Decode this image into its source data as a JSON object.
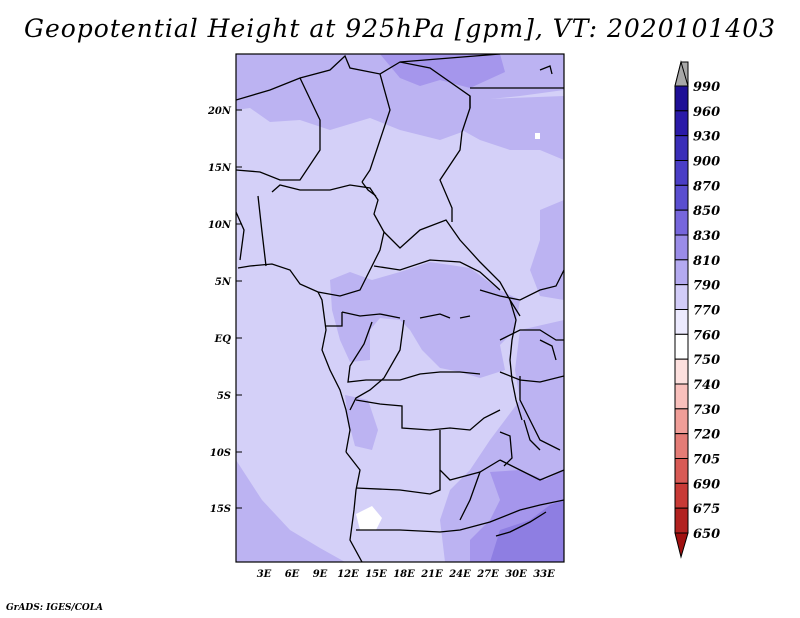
{
  "title": "Geopotential Height at 925hPa [gpm], VT: 2020101403",
  "credit": "GrADS: IGES/COLA",
  "map": {
    "lat_labels": [
      "20N",
      "15N",
      "10N",
      "5N",
      "EQ",
      "5S",
      "10S",
      "15S"
    ],
    "lon_labels": [
      "3E",
      "6E",
      "9E",
      "12E",
      "15E",
      "18E",
      "21E",
      "24E",
      "27E",
      "30E",
      "33E"
    ],
    "lon_range": [
      0,
      35
    ],
    "lat_range": [
      -20,
      24
    ]
  },
  "colorbar": {
    "levels": [
      "990",
      "960",
      "930",
      "900",
      "870",
      "850",
      "830",
      "810",
      "790",
      "770",
      "760",
      "750",
      "740",
      "730",
      "720",
      "705",
      "690",
      "675",
      "650"
    ],
    "colors": [
      "#a8a8a8",
      "#1e0f96",
      "#2a1aa8",
      "#3a2eb8",
      "#4a3ec6",
      "#5a4ed0",
      "#7666dc",
      "#9a8ce8",
      "#b4aaf0",
      "#d2ccf8",
      "#eceafe",
      "#ffffff",
      "#fde0de",
      "#f9c0bc",
      "#f09e98",
      "#e47c76",
      "#d85a55",
      "#c83a36",
      "#b22220",
      "#a01010"
    ]
  }
}
